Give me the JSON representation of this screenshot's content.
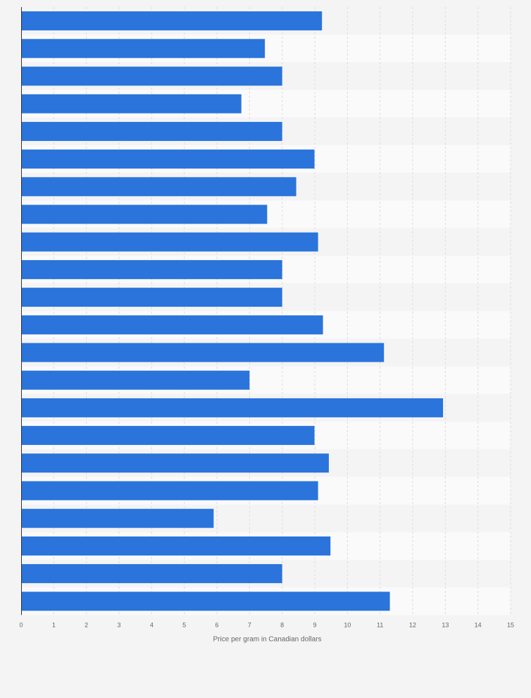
{
  "chart_data": {
    "type": "bar",
    "orientation": "horizontal",
    "xlabel": "Price per gram in Canadian dollars",
    "xlim": [
      0,
      15
    ],
    "ticks": [
      0,
      1,
      2,
      3,
      4,
      5,
      6,
      7,
      8,
      9,
      10,
      11,
      12,
      13,
      14,
      15
    ],
    "values": [
      9.22,
      7.47,
      8.0,
      6.75,
      8.0,
      8.99,
      8.43,
      7.54,
      9.1,
      8.0,
      8.0,
      9.25,
      11.12,
      7.0,
      12.93,
      8.99,
      9.43,
      9.1,
      5.9,
      9.48,
      8.0,
      11.3
    ],
    "grid": true,
    "legend": "none",
    "bar_color": "#2a74db"
  }
}
